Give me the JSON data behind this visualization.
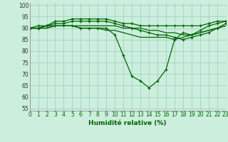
{
  "x": [
    0,
    1,
    2,
    3,
    4,
    5,
    6,
    7,
    8,
    9,
    10,
    11,
    12,
    13,
    14,
    15,
    16,
    17,
    18,
    19,
    20,
    21,
    22,
    23
  ],
  "series": [
    {
      "values": [
        90,
        91,
        91,
        93,
        93,
        94,
        94,
        94,
        94,
        94,
        93,
        92,
        92,
        91,
        91,
        91,
        91,
        91,
        91,
        91,
        91,
        92,
        93,
        93
      ],
      "marker": true
    },
    {
      "values": [
        90,
        90,
        91,
        92,
        92,
        93,
        93,
        93,
        93,
        93,
        92,
        91,
        90,
        89,
        88,
        87,
        87,
        86,
        85,
        86,
        87,
        88,
        90,
        92
      ],
      "marker": true
    },
    {
      "values": [
        90,
        90,
        91,
        91,
        91,
        91,
        90,
        90,
        90,
        90,
        87,
        78,
        69,
        67,
        64,
        67,
        72,
        85,
        88,
        87,
        89,
        91,
        92,
        93
      ],
      "marker": true
    },
    {
      "values": [
        90,
        90,
        90,
        91,
        91,
        91,
        90,
        90,
        90,
        89,
        89,
        88,
        87,
        86,
        86,
        86,
        86,
        85,
        86,
        87,
        88,
        89,
        90,
        91
      ],
      "marker": false
    },
    {
      "values": [
        90,
        90,
        90,
        91,
        91,
        91,
        91,
        91,
        91,
        91,
        91,
        90,
        90,
        90,
        89,
        89,
        88,
        88,
        87,
        87,
        88,
        89,
        90,
        91
      ],
      "marker": false
    }
  ],
  "line_color": "#006600",
  "marker_color": "#006600",
  "bg_color": "#cceedd",
  "grid_color": "#99ccbb",
  "xlabel": "Humidité relative (%)",
  "ylabel_ticks": [
    55,
    60,
    65,
    70,
    75,
    80,
    85,
    90,
    95,
    100
  ],
  "xlim": [
    0,
    23
  ],
  "ylim": [
    54,
    101
  ],
  "xlabel_fontsize": 6.5,
  "tick_fontsize": 5.5
}
